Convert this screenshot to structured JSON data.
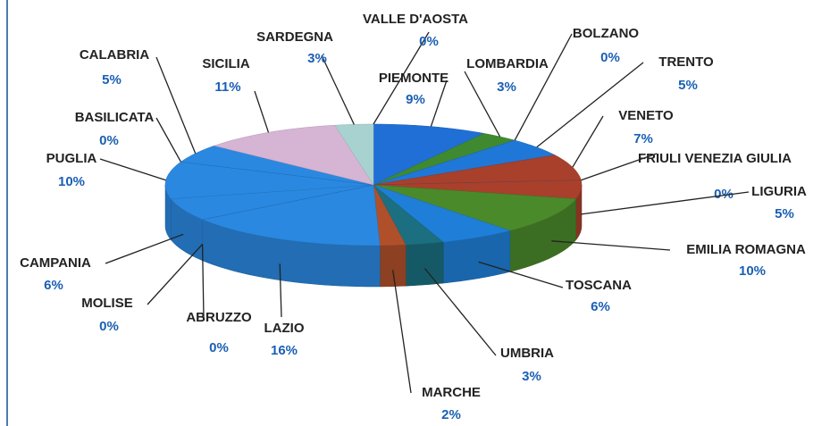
{
  "chart_data": {
    "type": "pie",
    "categories": [
      "VALLE D'AOSTA",
      "PIEMONTE",
      "LOMBARDIA",
      "BOLZANO",
      "TRENTO",
      "VENETO",
      "FRIULI VENEZIA GIULIA",
      "LIGURIA",
      "EMILIA ROMAGNA",
      "TOSCANA",
      "UMBRIA",
      "MARCHE",
      "LAZIO",
      "ABRUZZO",
      "MOLISE",
      "CAMPANIA",
      "PUGLIA",
      "BASILICATA",
      "CALABRIA",
      "SICILIA",
      "SARDEGNA"
    ],
    "values": [
      0,
      9,
      3,
      0,
      5,
      7,
      0,
      5,
      10,
      6,
      3,
      2,
      16,
      0,
      0,
      6,
      10,
      0,
      5,
      11,
      3
    ],
    "value_labels": [
      "0%",
      "9%",
      "3%",
      "0%",
      "5%",
      "7%",
      "0%",
      "5%",
      "10%",
      "6%",
      "3%",
      "2%",
      "16%",
      "0%",
      "0%",
      "6%",
      "10%",
      "0%",
      "5%",
      "11%",
      "3%"
    ],
    "colors": [
      "#1f6fd6",
      "#1f6fd6",
      "#3f8a30",
      "#1f6fd6",
      "#1f78d8",
      "#a8402c",
      "#1f6fd6",
      "#a8402c",
      "#4a8a2a",
      "#1f7fd8",
      "#1c6f80",
      "#b0502a",
      "#2a88e0",
      "#1f6fd6",
      "#1f6fd6",
      "#2a88e0",
      "#2a88e0",
      "#1f6fd6",
      "#2a88e0",
      "#d6b4d4",
      "#a8d2d0"
    ]
  }
}
